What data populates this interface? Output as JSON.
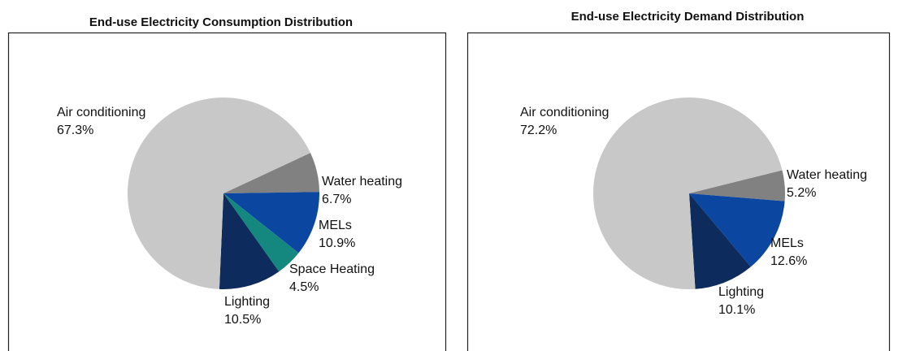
{
  "chart_data": [
    {
      "type": "pie",
      "title": "End-use Electricity Consumption Distribution",
      "categories": [
        "Water heating",
        "MELs",
        "Space Heating",
        "Lighting",
        "Air conditioning"
      ],
      "values": [
        6.7,
        10.9,
        4.5,
        10.5,
        67.3
      ],
      "value_labels": [
        "6.7%",
        "10.9%",
        "4.5%",
        "10.5%",
        "67.3%"
      ],
      "colors": [
        "#818181",
        "#0b47a0",
        "#14887f",
        "#0e2b5e",
        "#c8c8c8"
      ]
    },
    {
      "type": "pie",
      "title": "End-use Electricity Demand Distribution",
      "categories": [
        "Water heating",
        "MELs",
        "Lighting",
        "Air conditioning"
      ],
      "values": [
        5.2,
        12.6,
        10.1,
        72.2
      ],
      "value_labels": [
        "5.2%",
        "12.6%",
        "10.1%",
        "72.2%"
      ],
      "colors": [
        "#818181",
        "#0b47a0",
        "#0e2b5e",
        "#c8c8c8"
      ]
    }
  ]
}
